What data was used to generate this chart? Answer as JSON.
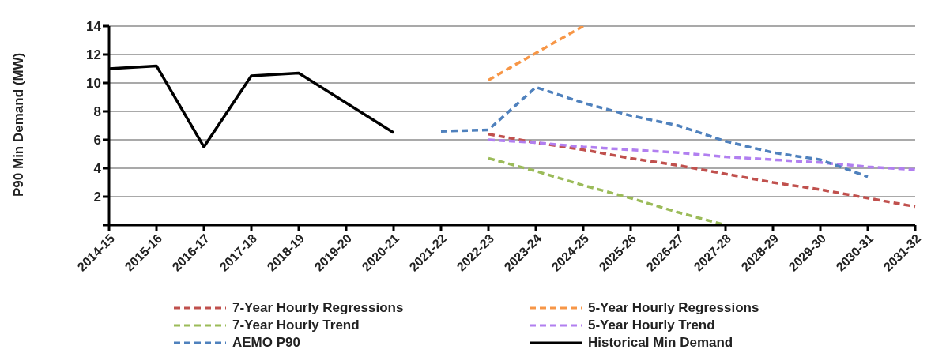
{
  "chart_data": {
    "type": "line",
    "ylabel": "P90 Min Demand (MW)",
    "categories": [
      "2014-15",
      "2015-16",
      "2016-17",
      "2017-18",
      "2018-19",
      "2019-20",
      "2020-21",
      "2021-22",
      "2022-23",
      "2023-24",
      "2024-25",
      "2025-26",
      "2026-27",
      "2027-28",
      "2028-29",
      "2029-30",
      "2030-31",
      "2031-32"
    ],
    "ylim": [
      0,
      14
    ],
    "yticks": [
      {
        "value": 0,
        "label": null
      },
      2,
      4,
      6,
      8,
      10,
      12,
      14
    ],
    "grid": "y",
    "legend": "bottom",
    "marker": "none",
    "series": [
      {
        "name": "7-Year Hourly Regressions",
        "color": "#c0504d",
        "line_style": "dashed",
        "values": [
          null,
          null,
          null,
          null,
          null,
          null,
          null,
          null,
          6.4,
          5.8,
          5.3,
          4.7,
          4.2,
          3.6,
          3.0,
          2.5,
          1.9,
          1.3
        ]
      },
      {
        "name": "5-Year Hourly Regressions",
        "color": "#f79646",
        "line_style": "dashed",
        "values": [
          null,
          null,
          null,
          null,
          null,
          null,
          null,
          null,
          10.2,
          12.1,
          14.0,
          null,
          null,
          null,
          null,
          null,
          null,
          null
        ]
      },
      {
        "name": "7-Year Hourly Trend",
        "color": "#9bbb59",
        "line_style": "dashed",
        "values": [
          null,
          null,
          null,
          null,
          null,
          null,
          null,
          null,
          4.7,
          3.8,
          2.8,
          1.9,
          0.9,
          0.0,
          null,
          null,
          null,
          null
        ]
      },
      {
        "name": "5-Year Hourly Trend",
        "color": "#b17ff0",
        "line_style": "dashed",
        "values": [
          null,
          null,
          null,
          null,
          null,
          null,
          null,
          null,
          6.0,
          5.8,
          5.5,
          5.3,
          5.1,
          4.8,
          4.6,
          4.4,
          4.1,
          3.9
        ]
      },
      {
        "name": "AEMO P90",
        "color": "#4f81bd",
        "line_style": "dashed",
        "values": [
          null,
          null,
          null,
          null,
          null,
          null,
          null,
          6.6,
          6.7,
          9.7,
          8.6,
          7.7,
          7.0,
          5.9,
          5.1,
          4.6,
          3.4,
          null
        ]
      },
      {
        "name": "Historical Min Demand",
        "color": "#000000",
        "line_style": "solid",
        "values": [
          11.0,
          11.2,
          5.5,
          10.5,
          10.7,
          8.6,
          6.5,
          null,
          null,
          null,
          null,
          null,
          null,
          null,
          null,
          null,
          null,
          null
        ]
      }
    ]
  }
}
